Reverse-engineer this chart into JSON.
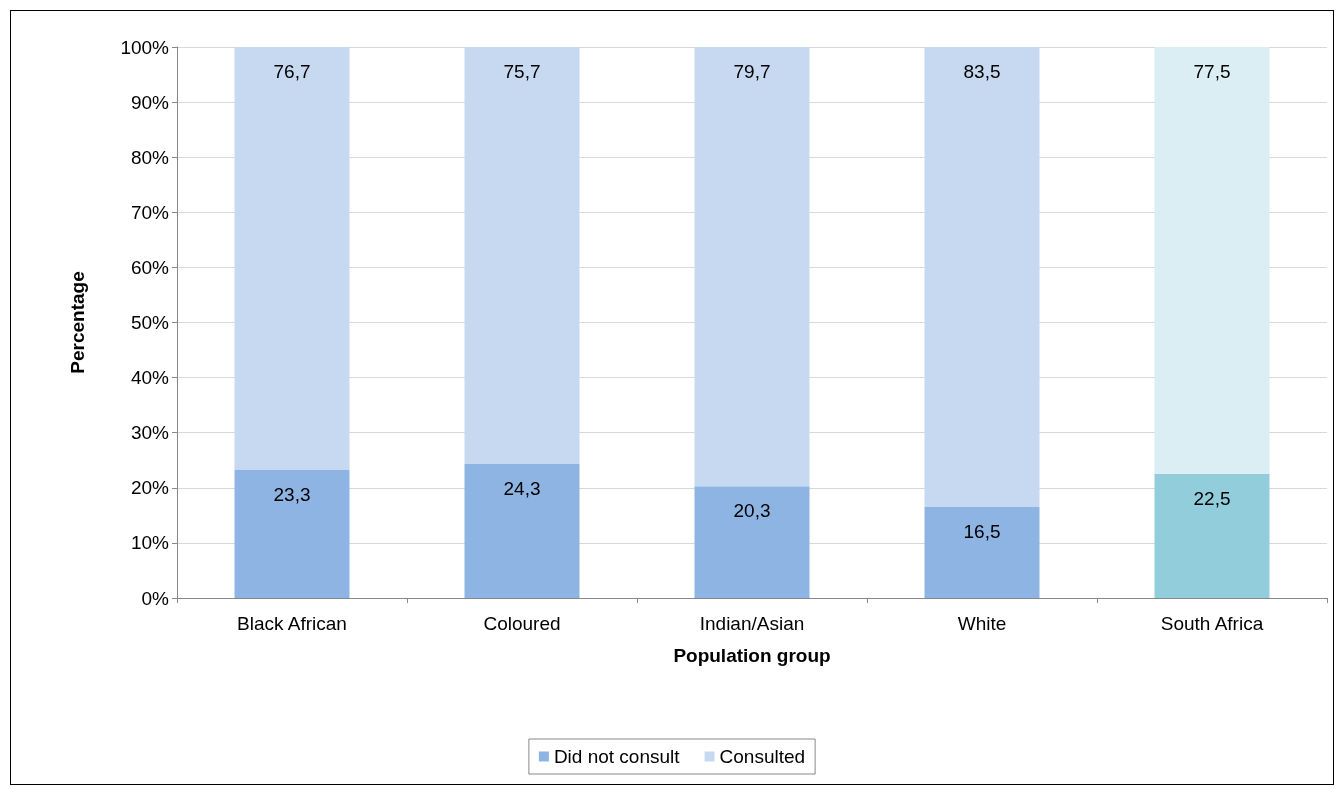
{
  "chart_data": {
    "type": "bar",
    "stacked": true,
    "xlabel": "Population group",
    "ylabel": "Percentage",
    "categories": [
      "Black African",
      "Coloured",
      "Indian/Asian",
      "White",
      "South Africa"
    ],
    "series": [
      {
        "name": "Did not consult",
        "color": "#8eb4e3",
        "colors": [
          "#8eb4e3",
          "#8eb4e3",
          "#8eb4e3",
          "#8eb4e3",
          "#92cddc"
        ],
        "values": [
          23.3,
          24.3,
          20.3,
          16.5,
          22.5
        ],
        "value_labels": [
          "23,3",
          "24,3",
          "20,3",
          "16,5",
          "22,5"
        ]
      },
      {
        "name": "Consulted",
        "color": "#c6d9f1",
        "colors": [
          "#c6d9f1",
          "#c6d9f1",
          "#c6d9f1",
          "#c6d9f1",
          "#dbeef4"
        ],
        "values": [
          76.7,
          75.7,
          79.7,
          83.5,
          77.5
        ],
        "value_labels": [
          "76,7",
          "75,7",
          "79,7",
          "83,5",
          "77,5"
        ]
      }
    ],
    "ylim": [
      0,
      100
    ],
    "yticks": [
      {
        "value": 0,
        "label": "0%"
      },
      {
        "value": 10,
        "label": "10%"
      },
      {
        "value": 20,
        "label": "20%"
      },
      {
        "value": 30,
        "label": "30%"
      },
      {
        "value": 40,
        "label": "40%"
      },
      {
        "value": 50,
        "label": "50%"
      },
      {
        "value": 60,
        "label": "60%"
      },
      {
        "value": 70,
        "label": "70%"
      },
      {
        "value": 80,
        "label": "80%"
      },
      {
        "value": 90,
        "label": "90%"
      },
      {
        "value": 100,
        "label": "100%"
      }
    ],
    "grid": "y",
    "legend": "bottom"
  }
}
